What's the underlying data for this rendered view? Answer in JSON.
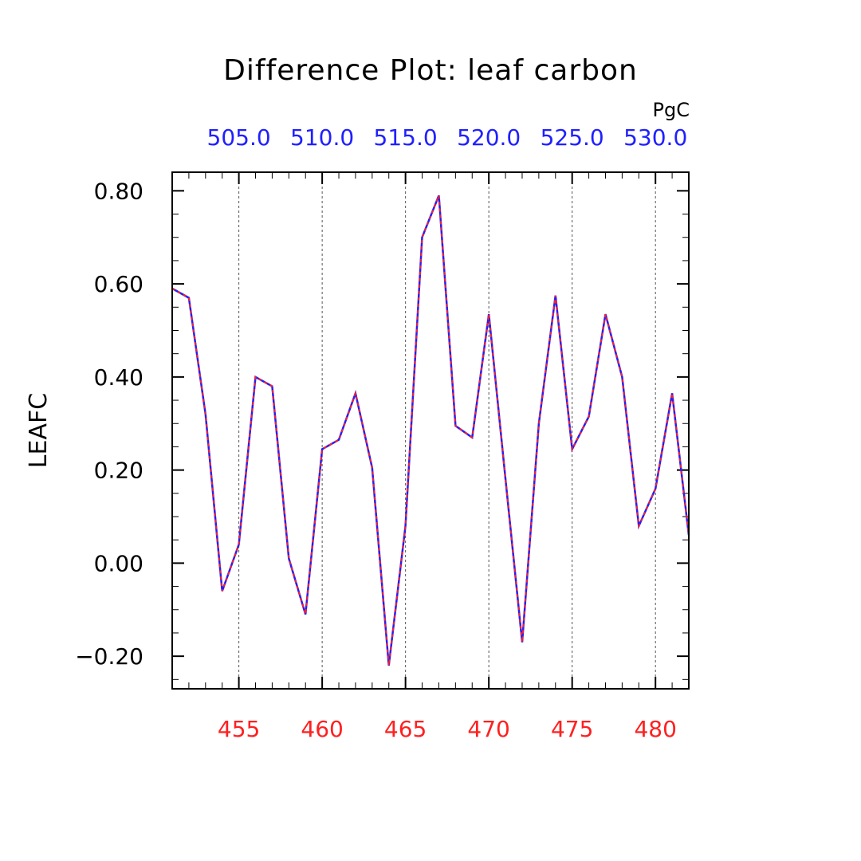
{
  "chart_data": {
    "type": "line",
    "title": "Difference Plot: leaf carbon",
    "ylabel": "LEAFC",
    "xlabel": "",
    "top_axis_unit": "PgC",
    "xlim": [
      451,
      482
    ],
    "ylim": [
      -0.27,
      0.84
    ],
    "x_ticks": [
      455,
      460,
      465,
      470,
      475,
      480
    ],
    "x_tick_labels": [
      "455",
      "460",
      "465",
      "470",
      "475",
      "480"
    ],
    "y_ticks": [
      -0.2,
      0.0,
      0.2,
      0.4,
      0.6,
      0.8
    ],
    "y_tick_labels": [
      "−0.20",
      "0.00",
      "0.20",
      "0.40",
      "0.60",
      "0.80"
    ],
    "top_ticks": [
      455,
      460,
      465,
      470,
      475,
      480
    ],
    "top_tick_labels": [
      "505.0",
      "510.0",
      "515.0",
      "520.0",
      "525.0",
      "530.0"
    ],
    "grid": "vertical dashed at major x ticks",
    "colors": {
      "series_solid": "#2020ff",
      "series_dashed": "#ff2020",
      "bottom_axis_labels": "#ff2020",
      "top_axis_labels": "#2020ff"
    },
    "x": [
      451,
      452,
      453,
      454,
      455,
      456,
      457,
      458,
      459,
      460,
      461,
      462,
      463,
      464,
      465,
      466,
      467,
      468,
      469,
      470,
      471,
      472,
      473,
      474,
      475,
      476,
      477,
      478,
      479,
      480,
      481,
      482
    ],
    "series": [
      {
        "values": [
          0.59,
          0.57,
          0.32,
          -0.06,
          0.04,
          0.4,
          0.38,
          0.01,
          -0.11,
          0.245,
          0.265,
          0.365,
          0.205,
          -0.22,
          0.08,
          0.7,
          0.79,
          0.295,
          0.27,
          0.535,
          0.18,
          -0.17,
          0.3,
          0.575,
          0.245,
          0.315,
          0.535,
          0.4,
          0.08,
          0.16,
          0.365,
          0.06
        ]
      }
    ]
  }
}
